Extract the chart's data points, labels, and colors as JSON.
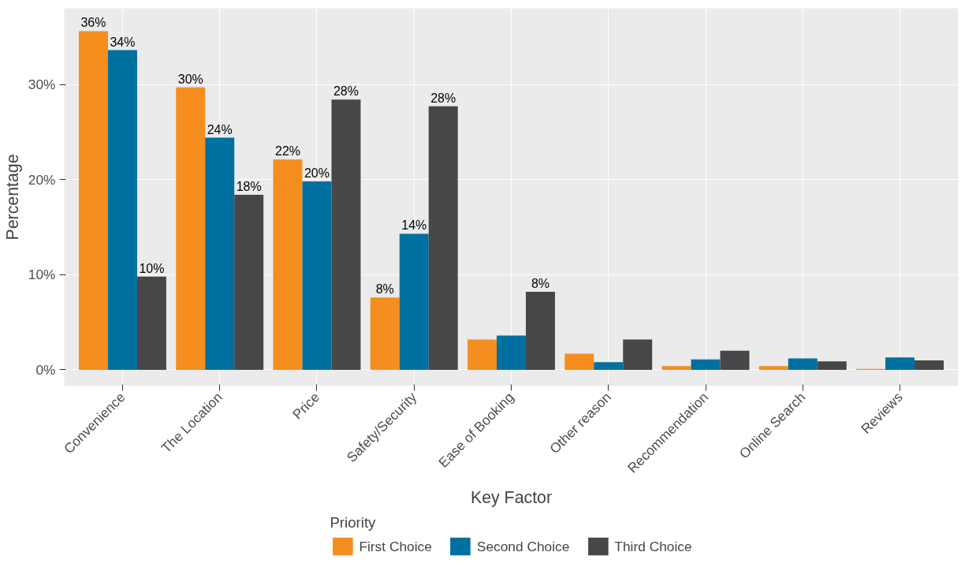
{
  "chart_data": {
    "type": "bar",
    "xlabel": "Key Factor",
    "ylabel": "Percentage",
    "legend_title": "Priority",
    "legend": "bottom",
    "grid": true,
    "categories": [
      "Convenience",
      "The Location",
      "Price",
      "Safety/Security",
      "Ease of Booking",
      "Other reason",
      "Recommendation",
      "Online Search",
      "Reviews"
    ],
    "ylim": [
      -1.7,
      38
    ],
    "yticks": [
      {
        "value": 0,
        "label": "0%"
      },
      {
        "value": 10,
        "label": "10%"
      },
      {
        "value": 20,
        "label": "20%"
      },
      {
        "value": 30,
        "label": "30%"
      }
    ],
    "series": [
      {
        "name": "First Choice",
        "color": "#f58e1e",
        "values": [
          35.6,
          29.7,
          22.1,
          7.6,
          3.2,
          1.7,
          0.4,
          0.4,
          0.1
        ],
        "value_labels": [
          "36%",
          "30%",
          "22%",
          "8%",
          null,
          null,
          null,
          null,
          null
        ]
      },
      {
        "name": "Second Choice",
        "color": "#0070a0",
        "values": [
          33.6,
          24.4,
          19.8,
          14.3,
          3.6,
          0.8,
          1.1,
          1.2,
          1.3
        ],
        "value_labels": [
          "34%",
          "24%",
          "20%",
          "14%",
          null,
          null,
          null,
          null,
          null
        ]
      },
      {
        "name": "Third Choice",
        "color": "#47474a",
        "values": [
          9.8,
          18.4,
          28.4,
          27.7,
          8.2,
          3.2,
          2.0,
          0.9,
          1.0
        ],
        "value_labels": [
          "10%",
          "18%",
          "28%",
          "28%",
          "8%",
          null,
          null,
          null,
          null
        ]
      }
    ]
  }
}
